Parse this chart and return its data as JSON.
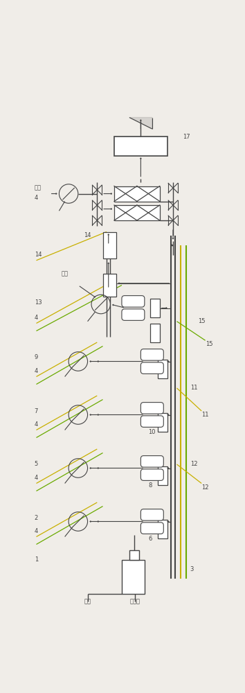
{
  "bg_color": "#f0ede8",
  "lc": "#444444",
  "hc1": "#c8b000",
  "hc2": "#6aaa00",
  "fig_w": 3.54,
  "fig_h": 10.0,
  "dpi": 100,
  "labels": {
    "steam": "蔫气",
    "air": "空气",
    "acid_gas": "酸性气",
    "n1": "1",
    "n2": "2",
    "n3": "3",
    "n4": "4",
    "n5": "5",
    "n6": "6",
    "n7": "7",
    "n8": "8",
    "n9": "9",
    "n10": "10",
    "n11": "11",
    "n12": "12",
    "n13": "13",
    "n14": "14",
    "n15": "15",
    "n17": "17"
  },
  "xlim": [
    0,
    100
  ],
  "ylim": [
    0,
    280
  ]
}
